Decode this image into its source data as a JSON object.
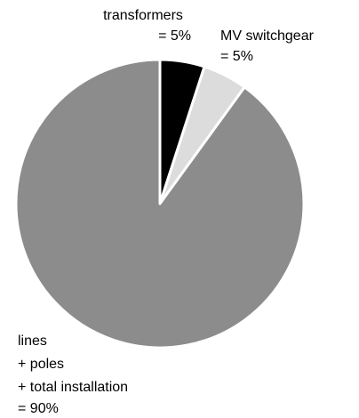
{
  "chart_data": {
    "type": "pie",
    "categories": [
      [
        "transformers"
      ],
      [
        "MV switchgear"
      ],
      [
        "lines",
        "+ poles",
        "+ total installation"
      ]
    ],
    "values": [
      5,
      5,
      90
    ],
    "value_labels": [
      "= 5%",
      "= 5%",
      "= 90%"
    ],
    "colors": [
      "#000000",
      "#dcdcdc",
      "#8c8c8c"
    ]
  }
}
